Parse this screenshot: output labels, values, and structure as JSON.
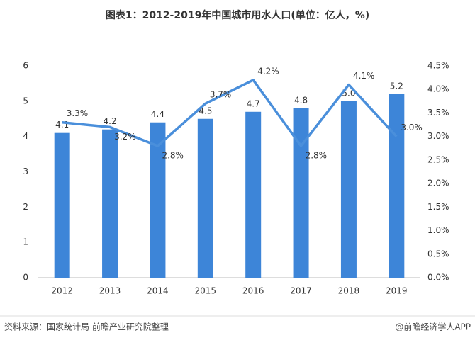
{
  "chart_data": {
    "type": "bar-line",
    "title": "图表1：2012-2019年中国城市用水人口(单位：亿人，%)",
    "categories": [
      "2012",
      "2013",
      "2014",
      "2015",
      "2016",
      "2017",
      "2018",
      "2019"
    ],
    "series": [
      {
        "color": "#3d85d8",
        "values": [
          4.1,
          4.2,
          4.4,
          4.5,
          4.7,
          4.8,
          5.0,
          5.2
        ],
        "value_labels": [
          "4.1",
          "4.2",
          "4.4",
          "4.5",
          "4.7",
          "4.8",
          "5.0",
          "5.2"
        ]
      },
      {
        "color": "#4a8fdb",
        "axis": "y2",
        "values": [
          3.3,
          3.2,
          2.8,
          3.7,
          4.2,
          2.8,
          4.1,
          3.0
        ],
        "value_labels": [
          "3.3%",
          "3.2%",
          "2.8%",
          "3.7%",
          "4.2%",
          "2.8%",
          "4.1%",
          "3.0%"
        ]
      }
    ],
    "ylim": [
      0,
      6
    ],
    "yticks": [
      0,
      1,
      2,
      3,
      4,
      5,
      6
    ],
    "y2lim": [
      0,
      4.5
    ],
    "y2ticks": [
      {
        "value": 0,
        "label": "0.0%"
      },
      {
        "value": 0.5,
        "label": "0.5%"
      },
      {
        "value": 1,
        "label": "1.0%"
      },
      {
        "value": 1.5,
        "label": "1.5%"
      },
      {
        "value": 2,
        "label": "2.0%"
      },
      {
        "value": 2.5,
        "label": "2.5%"
      },
      {
        "value": 3,
        "label": "3.0%"
      },
      {
        "value": 3.5,
        "label": "3.5%"
      },
      {
        "value": 4,
        "label": "4.0%"
      },
      {
        "value": 4.5,
        "label": "4.5%"
      }
    ],
    "source": "资料来源：国家统计局 前瞻产业研究院整理",
    "credit": "@前瞻经济学人APP"
  }
}
